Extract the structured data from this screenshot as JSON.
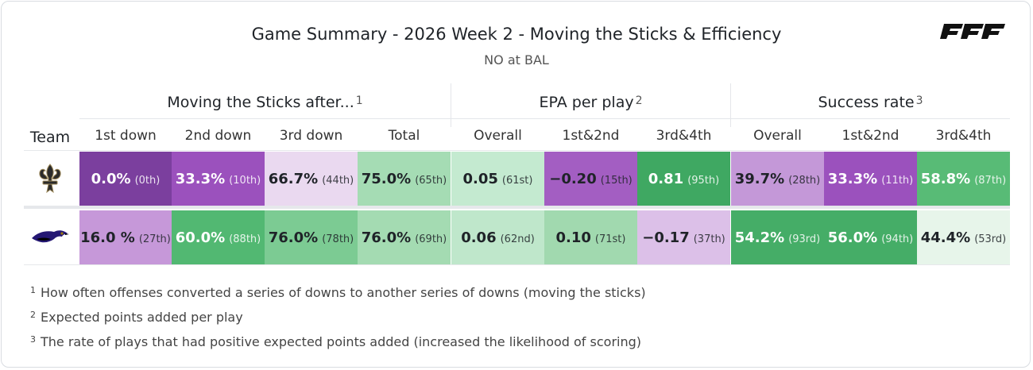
{
  "header": {
    "title": "Game Summary - 2026 Week 2 - Moving the Sticks & Efficiency",
    "subtitle": "NO at BAL",
    "brand": "PFF"
  },
  "groups": [
    {
      "label": "Moving the Sticks after...",
      "note": "1"
    },
    {
      "label": "EPA per play",
      "note": "2"
    },
    {
      "label": "Success rate",
      "note": "3"
    }
  ],
  "columns": {
    "team": "Team",
    "c": [
      "1st down",
      "2nd down",
      "3rd down",
      "Total",
      "Overall",
      "1st&2nd",
      "3rd&4th",
      "Overall",
      "1st&2nd",
      "3rd&4th"
    ]
  },
  "rows": [
    {
      "team": "NO",
      "logo_icon": "saints-fleur-de-lis-icon",
      "cells": [
        {
          "value": "0.0%",
          "rank": "(0th)",
          "bg": "#7b3f9e",
          "fg": "#ffffff"
        },
        {
          "value": "33.3%",
          "rank": "(10th)",
          "bg": "#9b51bd",
          "fg": "#ffffff"
        },
        {
          "value": "66.7%",
          "rank": "(44th)",
          "bg": "#ead9f0",
          "fg": "#1f2328"
        },
        {
          "value": "75.0%",
          "rank": "(65th)",
          "bg": "#a5dcb4",
          "fg": "#1f2328"
        },
        {
          "value": "0.05",
          "rank": "(61st)",
          "bg": "#c4ead0",
          "fg": "#1f2328"
        },
        {
          "value": "−0.20",
          "rank": "(15th)",
          "bg": "#a35ec2",
          "fg": "#1f2328"
        },
        {
          "value": "0.81",
          "rank": "(95th)",
          "bg": "#3fa862",
          "fg": "#ffffff"
        },
        {
          "value": "39.7%",
          "rank": "(28th)",
          "bg": "#c498d8",
          "fg": "#1f2328"
        },
        {
          "value": "33.3%",
          "rank": "(11th)",
          "bg": "#9b51bd",
          "fg": "#ffffff"
        },
        {
          "value": "58.8%",
          "rank": "(87th)",
          "bg": "#58bb76",
          "fg": "#ffffff"
        }
      ]
    },
    {
      "team": "BAL",
      "logo_icon": "ravens-bird-icon",
      "cells": [
        {
          "value": "16.0 %",
          "rank": "(27th)",
          "bg": "#c698d9",
          "fg": "#1f2328"
        },
        {
          "value": "60.0%",
          "rank": "(88th)",
          "bg": "#52b872",
          "fg": "#ffffff"
        },
        {
          "value": "76.0%",
          "rank": "(78th)",
          "bg": "#7ccb93",
          "fg": "#1f2328"
        },
        {
          "value": "76.0%",
          "rank": "(69th)",
          "bg": "#a4dbb2",
          "fg": "#1f2328"
        },
        {
          "value": "0.06",
          "rank": "(62nd)",
          "bg": "#bfe7cb",
          "fg": "#1f2328"
        },
        {
          "value": "0.10",
          "rank": "(71st)",
          "bg": "#a1d9af",
          "fg": "#1f2328"
        },
        {
          "value": "−0.17",
          "rank": "(37th)",
          "bg": "#dcc0e8",
          "fg": "#1f2328"
        },
        {
          "value": "54.2%",
          "rank": "(93rd)",
          "bg": "#45ad67",
          "fg": "#ffffff"
        },
        {
          "value": "56.0%",
          "rank": "(94th)",
          "bg": "#45ad67",
          "fg": "#ffffff"
        },
        {
          "value": "44.4%",
          "rank": "(53rd)",
          "bg": "#e7f5ea",
          "fg": "#1f2328"
        }
      ]
    }
  ],
  "footnotes": [
    {
      "mark": "1",
      "text": "How often offenses converted a series of downs to another series of downs (moving the sticks)"
    },
    {
      "mark": "2",
      "text": "Expected points added per play"
    },
    {
      "mark": "3",
      "text": "The rate of plays that had positive expected points added (increased the likelihood of scoring)"
    }
  ]
}
